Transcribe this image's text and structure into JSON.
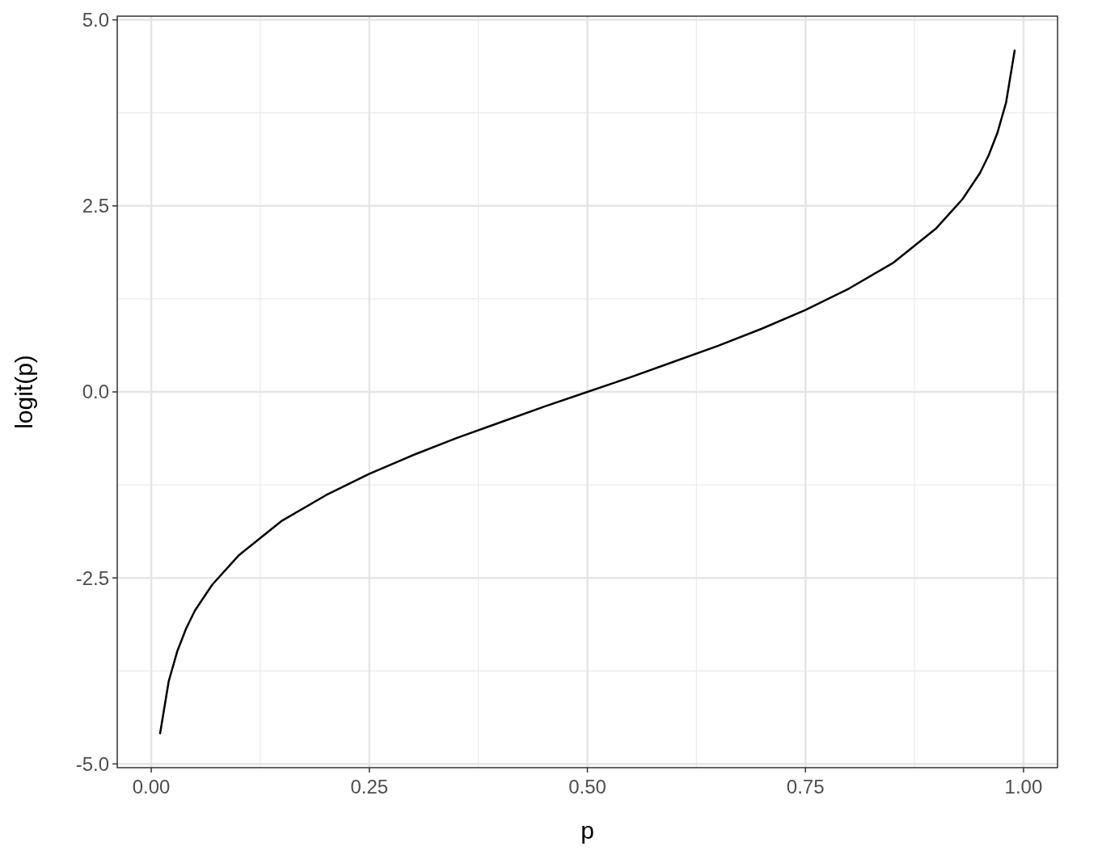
{
  "chart_data": {
    "type": "line",
    "xlabel": "p",
    "ylabel": "logit(p)",
    "x": [
      0.01,
      0.02,
      0.03,
      0.04,
      0.05,
      0.07,
      0.1,
      0.15,
      0.2,
      0.25,
      0.3,
      0.35,
      0.4,
      0.45,
      0.5,
      0.55,
      0.6,
      0.65,
      0.7,
      0.75,
      0.8,
      0.85,
      0.9,
      0.93,
      0.95,
      0.96,
      0.97,
      0.98,
      0.99
    ],
    "series": [
      {
        "color": "#000000",
        "values": [
          -4.6,
          -3.89,
          -3.48,
          -3.18,
          -2.94,
          -2.59,
          -2.2,
          -1.73,
          -1.39,
          -1.1,
          -0.85,
          -0.62,
          -0.41,
          -0.2,
          0,
          0.2,
          0.41,
          0.62,
          0.85,
          1.1,
          1.39,
          1.73,
          2.2,
          2.59,
          2.94,
          3.18,
          3.48,
          3.89,
          4.6
        ]
      }
    ],
    "xlim": [
      -0.039,
      1.039
    ],
    "ylim": [
      -5.05,
      5.05
    ],
    "xticks": [
      {
        "value": 0,
        "label": "0.00"
      },
      0.25,
      {
        "value": 0.5,
        "label": "0.50"
      },
      0.75,
      {
        "value": 1,
        "label": "1.00"
      }
    ],
    "yticks": [
      {
        "value": -5,
        "label": "-5.0"
      },
      -2.5,
      {
        "value": 0,
        "label": "0.0"
      },
      2.5,
      {
        "value": 5,
        "label": "5.0"
      }
    ],
    "grid": true,
    "line_style": "solid",
    "marker": "none"
  }
}
